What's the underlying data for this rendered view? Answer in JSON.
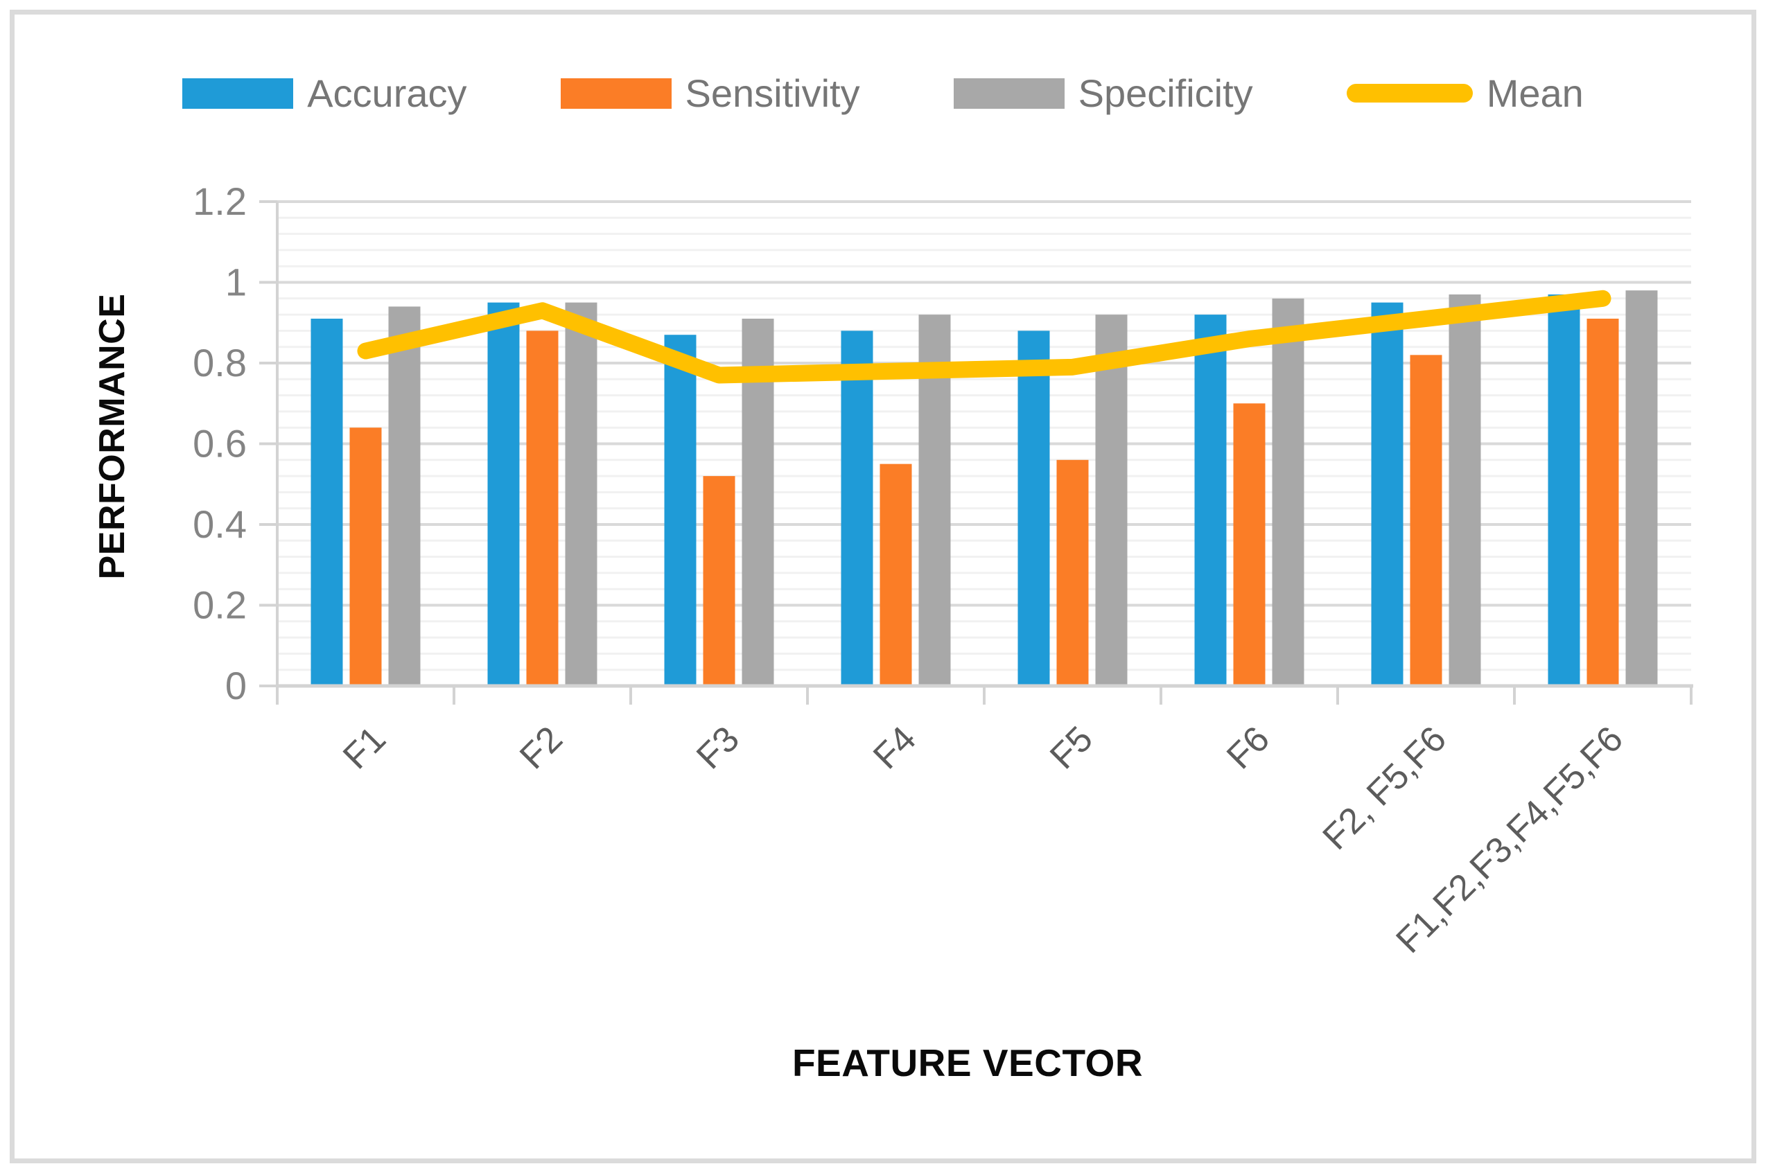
{
  "chart_data": {
    "type": "bar",
    "categories": [
      "F1",
      "F2",
      "F3",
      "F4",
      "F5",
      "F6",
      "F2, F5,F6",
      "F1,F2,F3,F4,F5,F6"
    ],
    "series": [
      {
        "name": "Accuracy",
        "type": "bar",
        "color": "#1F9BD7",
        "values": [
          0.91,
          0.95,
          0.87,
          0.88,
          0.88,
          0.92,
          0.95,
          0.97
        ]
      },
      {
        "name": "Sensitivity",
        "type": "bar",
        "color": "#FB7D26",
        "values": [
          0.64,
          0.88,
          0.52,
          0.55,
          0.56,
          0.7,
          0.82,
          0.91
        ]
      },
      {
        "name": "Specificity",
        "type": "bar",
        "color": "#A8A8A8",
        "values": [
          0.94,
          0.95,
          0.91,
          0.92,
          0.92,
          0.96,
          0.97,
          0.98
        ]
      },
      {
        "name": "Mean",
        "type": "line",
        "color": "#FFC000",
        "values": [
          0.83,
          0.93,
          0.77,
          0.78,
          0.79,
          0.86,
          0.91,
          0.96
        ]
      }
    ],
    "title": "",
    "xlabel": "FEATURE VECTOR",
    "ylabel": "PERFORMANCE",
    "ylim": [
      0,
      1.2
    ],
    "yticks": {
      "values": [
        0,
        0.2,
        0.4,
        0.6,
        0.8,
        1,
        1.2
      ],
      "labels": [
        "0",
        "0.2",
        "0.4",
        "0.6",
        "0.8",
        "1",
        "1.2"
      ]
    },
    "minor_grid_step": 0.04,
    "grid": "on",
    "legend_position": "top",
    "style": {
      "minor_grid_color": "#F1F1F1",
      "major_grid_color": "#D9D9D9",
      "axis_color": "#D3D3D3",
      "ytick_label_color": "#848484",
      "xtick_label_color": "#5C5C5C",
      "legend_text_color": "#767676",
      "title_text_color": "#0a0a0a",
      "frame_border_color": "#DBDBDB"
    }
  }
}
